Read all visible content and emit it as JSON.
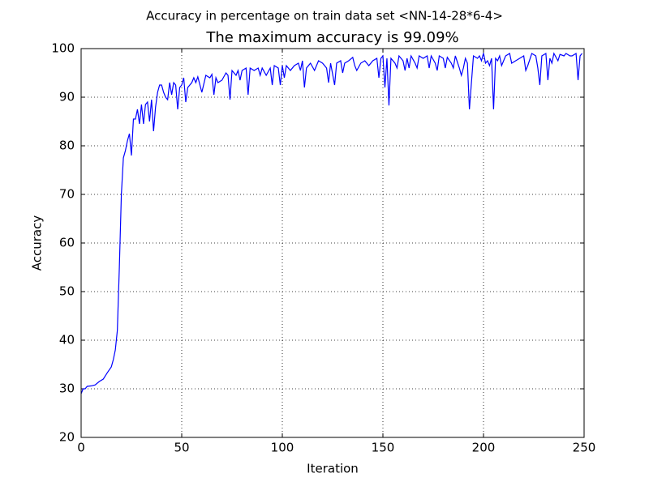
{
  "chart_data": {
    "type": "line",
    "suptitle": "Accuracy in percentage on train data set <NN-14-28*6-4>",
    "title": "The maximum accuracy is 99.09%",
    "xlabel": "Iteration",
    "ylabel": "Accuracy",
    "xlim": [
      0,
      250
    ],
    "xticks": [
      0,
      50,
      100,
      150,
      200,
      250
    ],
    "ylim": [
      20,
      100
    ],
    "yticks": [
      20,
      30,
      40,
      50,
      60,
      70,
      80,
      90,
      100
    ],
    "grid": true,
    "series": [
      {
        "color": "#0000ff",
        "x": [
          0,
          1,
          2,
          3,
          5,
          7,
          9,
          11,
          13,
          15,
          16,
          17,
          18,
          19,
          20,
          21,
          22,
          23,
          24,
          25,
          26,
          27,
          28,
          29,
          30,
          31,
          32,
          33,
          34,
          35,
          36,
          37,
          38,
          39,
          40,
          41,
          42,
          43,
          44,
          45,
          46,
          47,
          48,
          49,
          50,
          51,
          52,
          53,
          55,
          56,
          57,
          58,
          60,
          62,
          64,
          65,
          66,
          67,
          68,
          70,
          72,
          73,
          74,
          75,
          77,
          78,
          79,
          80,
          82,
          83,
          84,
          86,
          88,
          89,
          90,
          92,
          94,
          95,
          96,
          98,
          99,
          100,
          101,
          102,
          104,
          106,
          108,
          109,
          110,
          111,
          112,
          114,
          116,
          118,
          120,
          122,
          123,
          124,
          126,
          127,
          129,
          130,
          131,
          133,
          135,
          136,
          137,
          139,
          141,
          143,
          145,
          147,
          148,
          149,
          150,
          151,
          152,
          153,
          154,
          156,
          157,
          158,
          160,
          161,
          162,
          163,
          164,
          166,
          167,
          168,
          170,
          172,
          173,
          174,
          176,
          177,
          178,
          180,
          181,
          182,
          184,
          185,
          186,
          188,
          189,
          190,
          191,
          192,
          193,
          194,
          195,
          197,
          198,
          199,
          200,
          201,
          202,
          203,
          204,
          205,
          206,
          207,
          208,
          209,
          211,
          213,
          214,
          216,
          218,
          220,
          221,
          222,
          224,
          226,
          227,
          228,
          229,
          231,
          232,
          233,
          234,
          235,
          237,
          238,
          240,
          241,
          243,
          244,
          246,
          247,
          248,
          249
        ],
        "values": [
          29,
          30,
          30,
          30.5,
          30.6,
          30.8,
          31.5,
          32,
          33.3,
          34.5,
          36,
          38,
          42,
          55,
          70,
          77.5,
          79,
          81,
          82.5,
          78,
          85.5,
          85.5,
          87.5,
          84.5,
          88.5,
          84.5,
          88.5,
          89,
          85,
          89.5,
          83,
          88,
          91,
          92.5,
          92.5,
          91,
          90,
          89.5,
          93,
          90.5,
          93,
          92.5,
          87.5,
          92,
          92.5,
          94,
          89,
          92,
          93,
          94,
          93,
          94.2,
          91,
          94.5,
          94,
          94.7,
          90.5,
          94,
          93,
          93.5,
          95,
          94.5,
          89.5,
          95.5,
          94.5,
          95.5,
          93.5,
          95.5,
          96,
          90.5,
          96,
          95.5,
          96,
          94.5,
          96,
          94.5,
          96,
          92.5,
          96.5,
          96,
          92.5,
          96.5,
          94,
          96.5,
          95.5,
          96.5,
          97,
          95.5,
          97.5,
          92,
          96,
          97,
          95.5,
          97.5,
          97,
          96,
          93,
          97,
          92.5,
          97,
          97.5,
          95,
          97,
          97.5,
          98.2,
          96.5,
          95.5,
          97,
          97.5,
          96.5,
          97.5,
          98,
          94,
          98,
          98.5,
          92,
          98,
          88.3,
          98,
          97,
          96,
          98.5,
          97.5,
          95.5,
          98,
          96,
          98.5,
          97,
          96,
          98.5,
          98,
          98.5,
          96,
          98.5,
          97,
          95.5,
          98.5,
          98,
          96,
          98.2,
          97,
          96,
          98.5,
          96,
          94.5,
          96,
          98,
          97,
          87.5,
          93,
          98.5,
          98,
          98.5,
          97.5,
          99.09,
          97,
          97.5,
          96.5,
          98,
          87.5,
          98,
          97.5,
          98.5,
          96.5,
          98.5,
          99,
          97,
          97.5,
          98,
          98.5,
          95.5,
          96.5,
          99,
          98.5,
          96,
          92.5,
          98.5,
          99,
          93.5,
          98,
          97,
          99,
          97.5,
          98.8,
          98.5,
          99,
          98.5,
          98.5,
          99,
          93.5,
          98.5,
          99
        ]
      }
    ]
  }
}
